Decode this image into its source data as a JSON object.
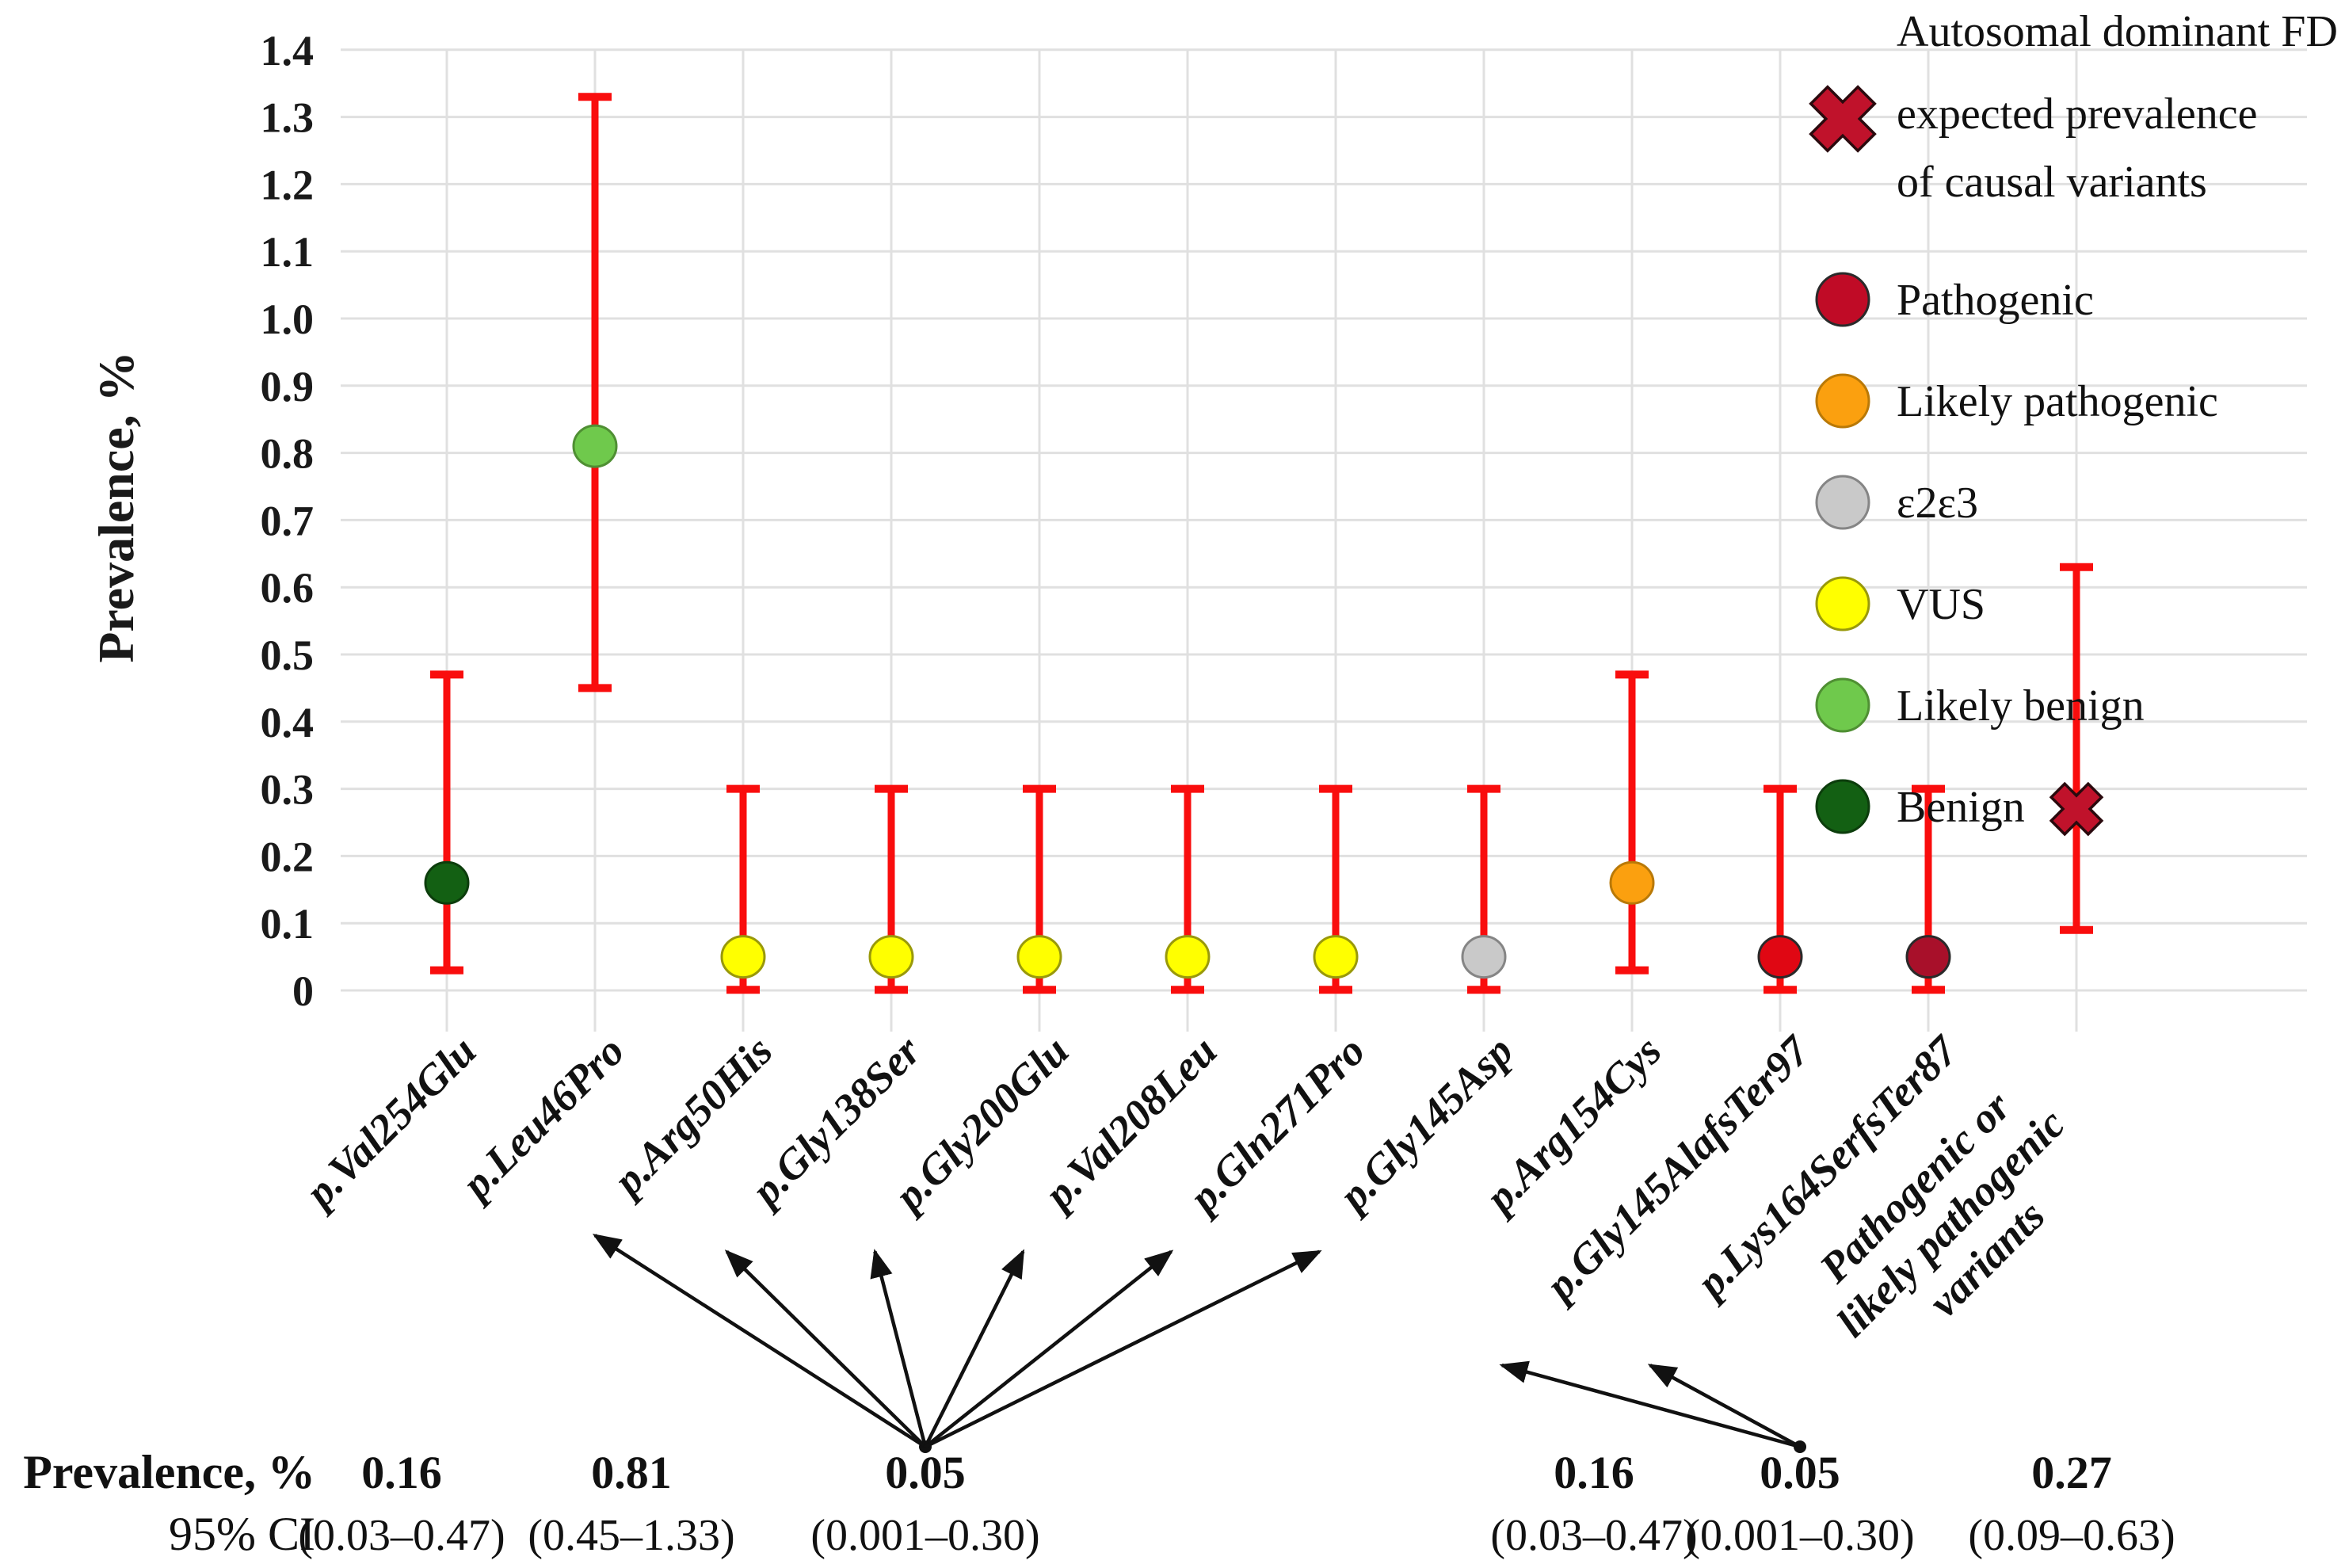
{
  "chart_data": {
    "type": "scatter",
    "title": "",
    "ylabel": "Prevalence, %",
    "ylim": [
      0,
      1.4
    ],
    "y_tick_labels": [
      "0",
      "0.1",
      "0.2",
      "0.3",
      "0.4",
      "0.5",
      "0.6",
      "0.7",
      "0.8",
      "0.9",
      "1.0",
      "1.1",
      "1.2",
      "1.3",
      "1.4"
    ],
    "grid": true,
    "legend_position": "top-right",
    "colors": {
      "error_bar": "#f90d0d",
      "grid_line": "#e0e0e0",
      "text": "#1a1a1a",
      "arrow": "#111111"
    },
    "categories": [
      "p.Val254Glu",
      "p.Leu46Pro",
      "p.Arg50His",
      "p.Gly138Ser",
      "p.Gly200Glu",
      "p.Val208Leu",
      "p.Gln271Pro",
      "p.Gly145Asp",
      "p.Arg154Cys",
      "p.Gly145AlafsTer97",
      "p.Lys164SerfsTer87",
      "Pathogenic or likely pathogenic variants"
    ],
    "points": [
      {
        "label": "p.Val254Glu",
        "classification": "Benign",
        "marker": "circle",
        "color": "#136013",
        "stroke": "#0c3d0c",
        "value": 0.16,
        "ci_low": 0.03,
        "ci_high": 0.47
      },
      {
        "label": "p.Leu46Pro",
        "classification": "Likely benign",
        "marker": "circle",
        "color": "#6fc94c",
        "stroke": "#4f8f33",
        "value": 0.81,
        "ci_low": 0.45,
        "ci_high": 1.33
      },
      {
        "label": "p.Arg50His",
        "classification": "VUS",
        "marker": "circle",
        "color": "#ffff00",
        "stroke": "#99990a",
        "value": 0.05,
        "ci_low": 0.001,
        "ci_high": 0.3
      },
      {
        "label": "p.Gly138Ser",
        "classification": "VUS",
        "marker": "circle",
        "color": "#ffff00",
        "stroke": "#99990a",
        "value": 0.05,
        "ci_low": 0.001,
        "ci_high": 0.3
      },
      {
        "label": "p.Gly200Glu",
        "classification": "VUS",
        "marker": "circle",
        "color": "#ffff00",
        "stroke": "#99990a",
        "value": 0.05,
        "ci_low": 0.001,
        "ci_high": 0.3
      },
      {
        "label": "p.Val208Leu",
        "classification": "VUS",
        "marker": "circle",
        "color": "#ffff00",
        "stroke": "#99990a",
        "value": 0.05,
        "ci_low": 0.001,
        "ci_high": 0.3
      },
      {
        "label": "p.Gln271Pro",
        "classification": "VUS",
        "marker": "circle",
        "color": "#ffff00",
        "stroke": "#99990a",
        "value": 0.05,
        "ci_low": 0.001,
        "ci_high": 0.3
      },
      {
        "label": "p.Gly145Asp",
        "classification": "ε2ε3",
        "marker": "circle",
        "color": "#c9c9c9",
        "stroke": "#858585",
        "value": 0.05,
        "ci_low": 0.001,
        "ci_high": 0.3
      },
      {
        "label": "p.Arg154Cys",
        "classification": "Likely pathogenic",
        "marker": "circle",
        "color": "#fba00f",
        "stroke": "#b97907",
        "value": 0.16,
        "ci_low": 0.03,
        "ci_high": 0.47
      },
      {
        "label": "p.Gly145AlafsTer97",
        "classification": "Pathogenic",
        "marker": "circle",
        "color": "#e00713",
        "stroke": "#2a2a2a",
        "value": 0.05,
        "ci_low": 0.001,
        "ci_high": 0.3
      },
      {
        "label": "p.Lys164SerfsTer87",
        "classification": "Pathogenic",
        "marker": "circle",
        "color": "#a8102a",
        "stroke": "#2a2a2a",
        "value": 0.05,
        "ci_low": 0.001,
        "ci_high": 0.3
      },
      {
        "label": "Pathogenic or likely pathogenic variants",
        "label_lines": [
          "Pathogenic or",
          "likely pathogenic",
          "variants"
        ],
        "classification": "Autosomal dominant FD expected prevalence",
        "marker": "x-cross",
        "color": "#c0122b",
        "stroke": "#2a0a0e",
        "value": 0.27,
        "ci_low": 0.09,
        "ci_high": 0.63
      }
    ],
    "legend": {
      "expected": {
        "marker": "x-cross",
        "color": "#c0122b",
        "label_lines": [
          "Autosomal dominant FD :",
          "expected prevalence",
          "of causal variants"
        ]
      },
      "items": [
        {
          "label": "Pathogenic",
          "color": "#c00b26",
          "stroke": "#2a2a2a"
        },
        {
          "label": "Likely pathogenic",
          "color": "#fba00f",
          "stroke": "#b97907"
        },
        {
          "label": "ε2ε3",
          "color": "#c9c9c9",
          "stroke": "#858585"
        },
        {
          "label": "VUS",
          "color": "#ffff00",
          "stroke": "#99990a"
        },
        {
          "label": "Likely benign",
          "color": "#6fc94c",
          "stroke": "#4f8f33"
        },
        {
          "label": "Benign",
          "color": "#136013",
          "stroke": "#0c3d0c"
        }
      ]
    },
    "annotations": {
      "row1_label": "Prevalence, %",
      "row2_label": "95% CI",
      "groups": [
        {
          "value": "0.16",
          "ci": "(0.03–0.47)",
          "categories": [
            "p.Val254Glu"
          ],
          "arrows": false
        },
        {
          "value": "0.81",
          "ci": "(0.45–1.33)",
          "categories": [
            "p.Leu46Pro"
          ],
          "arrows": false
        },
        {
          "value": "0.05",
          "ci": "(0.001–0.30)",
          "categories": [
            "p.Arg50His",
            "p.Gly138Ser",
            "p.Gly200Glu",
            "p.Val208Leu",
            "p.Gln271Pro",
            "p.Gly145Asp"
          ],
          "arrows": true
        },
        {
          "value": "0.16",
          "ci": "(0.03–0.47)",
          "categories": [
            "p.Arg154Cys"
          ],
          "arrows": false
        },
        {
          "value": "0.05",
          "ci": "(0.001–0.30)",
          "categories": [
            "p.Gly145AlafsTer97",
            "p.Lys164SerfsTer87"
          ],
          "arrows": true
        },
        {
          "value": "0.27",
          "ci": "(0.09–0.63)",
          "categories": [
            "Pathogenic or likely pathogenic variants"
          ],
          "arrows": false
        }
      ]
    }
  }
}
